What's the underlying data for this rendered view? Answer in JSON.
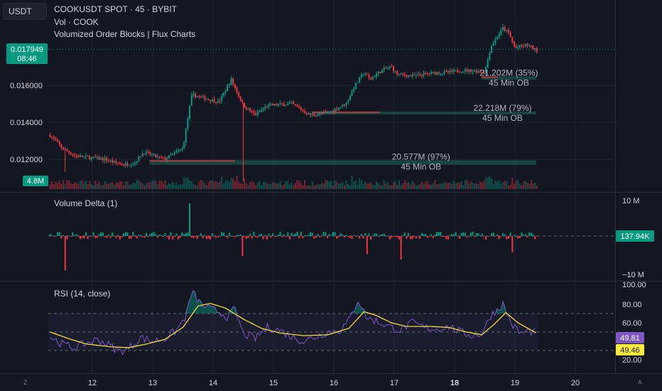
{
  "toolbar": {
    "currency": "USDT"
  },
  "legend": {
    "title": "COOKUSDT SPOT · 45 · BYBIT",
    "volume": "Vol · COOK",
    "indicator": "Volumized Order Blocks | Flux Charts"
  },
  "price_tag": {
    "price": "0.017949",
    "countdown": "08:46"
  },
  "volume_tag": "4.8M",
  "corner": {
    "left": "Z",
    "right": "A"
  },
  "colors": {
    "background": "#131722",
    "up": "#089981",
    "down": "#f23645",
    "rsi_line": "#7e57c2",
    "rsi_ma": "#ffeb3b",
    "order_block": "#1b4d45"
  },
  "chart_data": [
    {
      "type": "candlestick",
      "title": "COOKUSDT SPOT · 45 · BYBIT",
      "x_ticks": [
        "12",
        "13",
        "14",
        "15",
        "16",
        "17",
        "18",
        "19",
        "20"
      ],
      "y_ticks": [
        "0.016000",
        "0.014000",
        "0.012000"
      ],
      "ylim": [
        0.0107,
        0.0206
      ],
      "last_price": 0.017949,
      "close_path": [
        [
          11.3,
          0.0133
        ],
        [
          11.5,
          0.0126
        ],
        [
          11.7,
          0.0122
        ],
        [
          11.9,
          0.0121
        ],
        [
          12.2,
          0.012
        ],
        [
          12.5,
          0.0117
        ],
        [
          12.7,
          0.0118
        ],
        [
          12.85,
          0.0124
        ],
        [
          13.0,
          0.0122
        ],
        [
          13.2,
          0.012
        ],
        [
          13.5,
          0.0126
        ],
        [
          13.6,
          0.0146
        ],
        [
          13.65,
          0.0155
        ],
        [
          13.85,
          0.0153
        ],
        [
          14.1,
          0.0151
        ],
        [
          14.3,
          0.0163
        ],
        [
          14.5,
          0.0149
        ],
        [
          14.7,
          0.0144
        ],
        [
          14.9,
          0.0149
        ],
        [
          15.3,
          0.015
        ],
        [
          15.6,
          0.0144
        ],
        [
          15.9,
          0.0145
        ],
        [
          16.2,
          0.015
        ],
        [
          16.35,
          0.016
        ],
        [
          16.5,
          0.0167
        ],
        [
          16.6,
          0.0163
        ],
        [
          16.7,
          0.0166
        ],
        [
          16.85,
          0.0169
        ],
        [
          16.95,
          0.017
        ],
        [
          17.05,
          0.0166
        ],
        [
          17.3,
          0.0165
        ],
        [
          17.5,
          0.0166
        ],
        [
          17.7,
          0.0167
        ],
        [
          17.9,
          0.0167
        ],
        [
          18.1,
          0.0168
        ],
        [
          18.3,
          0.0168
        ],
        [
          18.5,
          0.0167
        ],
        [
          18.6,
          0.0181
        ],
        [
          18.8,
          0.0191
        ],
        [
          18.9,
          0.0188
        ],
        [
          19.0,
          0.018
        ],
        [
          19.2,
          0.0182
        ],
        [
          19.35,
          0.0179
        ]
      ],
      "order_blocks": [
        {
          "label": "21.202M (35%)",
          "sublabel": "45 Min OB",
          "x0": 18.45,
          "x1": 19.35,
          "y0": 0.0163,
          "y1": 0.01648
        },
        {
          "label": "22.218M (79%)",
          "sublabel": "45 Min OB",
          "x0": 15.65,
          "x1": 19.35,
          "y0": 0.01444,
          "y1": 0.01458
        },
        {
          "label": "20.577M (97%)",
          "sublabel": "45 Min OB",
          "x0": 12.95,
          "x1": 19.35,
          "y0": 0.0117,
          "y1": 0.01195
        }
      ]
    },
    {
      "type": "bar",
      "title": "Vol · COOK",
      "last_value": "4.8M"
    },
    {
      "type": "bar",
      "title": "Volume Delta (1)",
      "y_ticks": [
        "10 M",
        "−10 M"
      ],
      "ylim": [
        -10,
        10
      ],
      "last_value": "137.94K",
      "spikes": [
        [
          11.55,
          -9.5
        ],
        [
          13.6,
          9.0
        ],
        [
          14.5,
          -5.5
        ],
        [
          16.55,
          -5.0
        ],
        [
          17.1,
          -6.5
        ],
        [
          18.95,
          -4.5
        ]
      ]
    },
    {
      "type": "line",
      "title": "RSI (14, close)",
      "y_ticks": [
        "100.00",
        "80.00",
        "60.00",
        "20.00"
      ],
      "ylim": [
        20,
        100
      ],
      "levels": [
        70,
        50,
        30
      ],
      "series": [
        {
          "name": "RSI",
          "last": "49.81"
        },
        {
          "name": "MA",
          "last": "49.46"
        }
      ],
      "rsi_path": [
        [
          11.3,
          45
        ],
        [
          11.5,
          37
        ],
        [
          11.7,
          33
        ],
        [
          11.9,
          38
        ],
        [
          12.1,
          42
        ],
        [
          12.3,
          35
        ],
        [
          12.45,
          29
        ],
        [
          12.6,
          32
        ],
        [
          12.8,
          44
        ],
        [
          13.0,
          40
        ],
        [
          13.2,
          43
        ],
        [
          13.4,
          52
        ],
        [
          13.55,
          67
        ],
        [
          13.65,
          94
        ],
        [
          13.8,
          80
        ],
        [
          13.95,
          75
        ],
        [
          14.1,
          72
        ],
        [
          14.25,
          66
        ],
        [
          14.35,
          76
        ],
        [
          14.5,
          48
        ],
        [
          14.7,
          43
        ],
        [
          14.9,
          55
        ],
        [
          15.1,
          52
        ],
        [
          15.3,
          45
        ],
        [
          15.5,
          40
        ],
        [
          15.7,
          45
        ],
        [
          15.9,
          50
        ],
        [
          16.1,
          52
        ],
        [
          16.25,
          62
        ],
        [
          16.4,
          85
        ],
        [
          16.55,
          65
        ],
        [
          16.7,
          62
        ],
        [
          16.9,
          56
        ],
        [
          17.1,
          52
        ],
        [
          17.3,
          60
        ],
        [
          17.5,
          55
        ],
        [
          17.7,
          53
        ],
        [
          17.9,
          56
        ],
        [
          18.1,
          50
        ],
        [
          18.3,
          46
        ],
        [
          18.45,
          48
        ],
        [
          18.6,
          68
        ],
        [
          18.8,
          80
        ],
        [
          18.95,
          58
        ],
        [
          19.1,
          48
        ],
        [
          19.2,
          51
        ],
        [
          19.35,
          50
        ]
      ],
      "ma_path": [
        [
          11.3,
          50
        ],
        [
          11.6,
          43
        ],
        [
          11.9,
          37
        ],
        [
          12.3,
          34
        ],
        [
          12.6,
          33
        ],
        [
          12.9,
          37
        ],
        [
          13.2,
          42
        ],
        [
          13.5,
          55
        ],
        [
          13.75,
          78
        ],
        [
          13.95,
          81
        ],
        [
          14.2,
          76
        ],
        [
          14.5,
          64
        ],
        [
          14.8,
          54
        ],
        [
          15.1,
          49
        ],
        [
          15.5,
          46
        ],
        [
          15.9,
          47
        ],
        [
          16.25,
          54
        ],
        [
          16.5,
          72
        ],
        [
          16.7,
          68
        ],
        [
          16.95,
          60
        ],
        [
          17.2,
          56
        ],
        [
          17.6,
          56
        ],
        [
          17.9,
          55
        ],
        [
          18.2,
          50
        ],
        [
          18.45,
          47
        ],
        [
          18.65,
          58
        ],
        [
          18.85,
          71
        ],
        [
          19.05,
          60
        ],
        [
          19.35,
          49
        ]
      ]
    }
  ]
}
